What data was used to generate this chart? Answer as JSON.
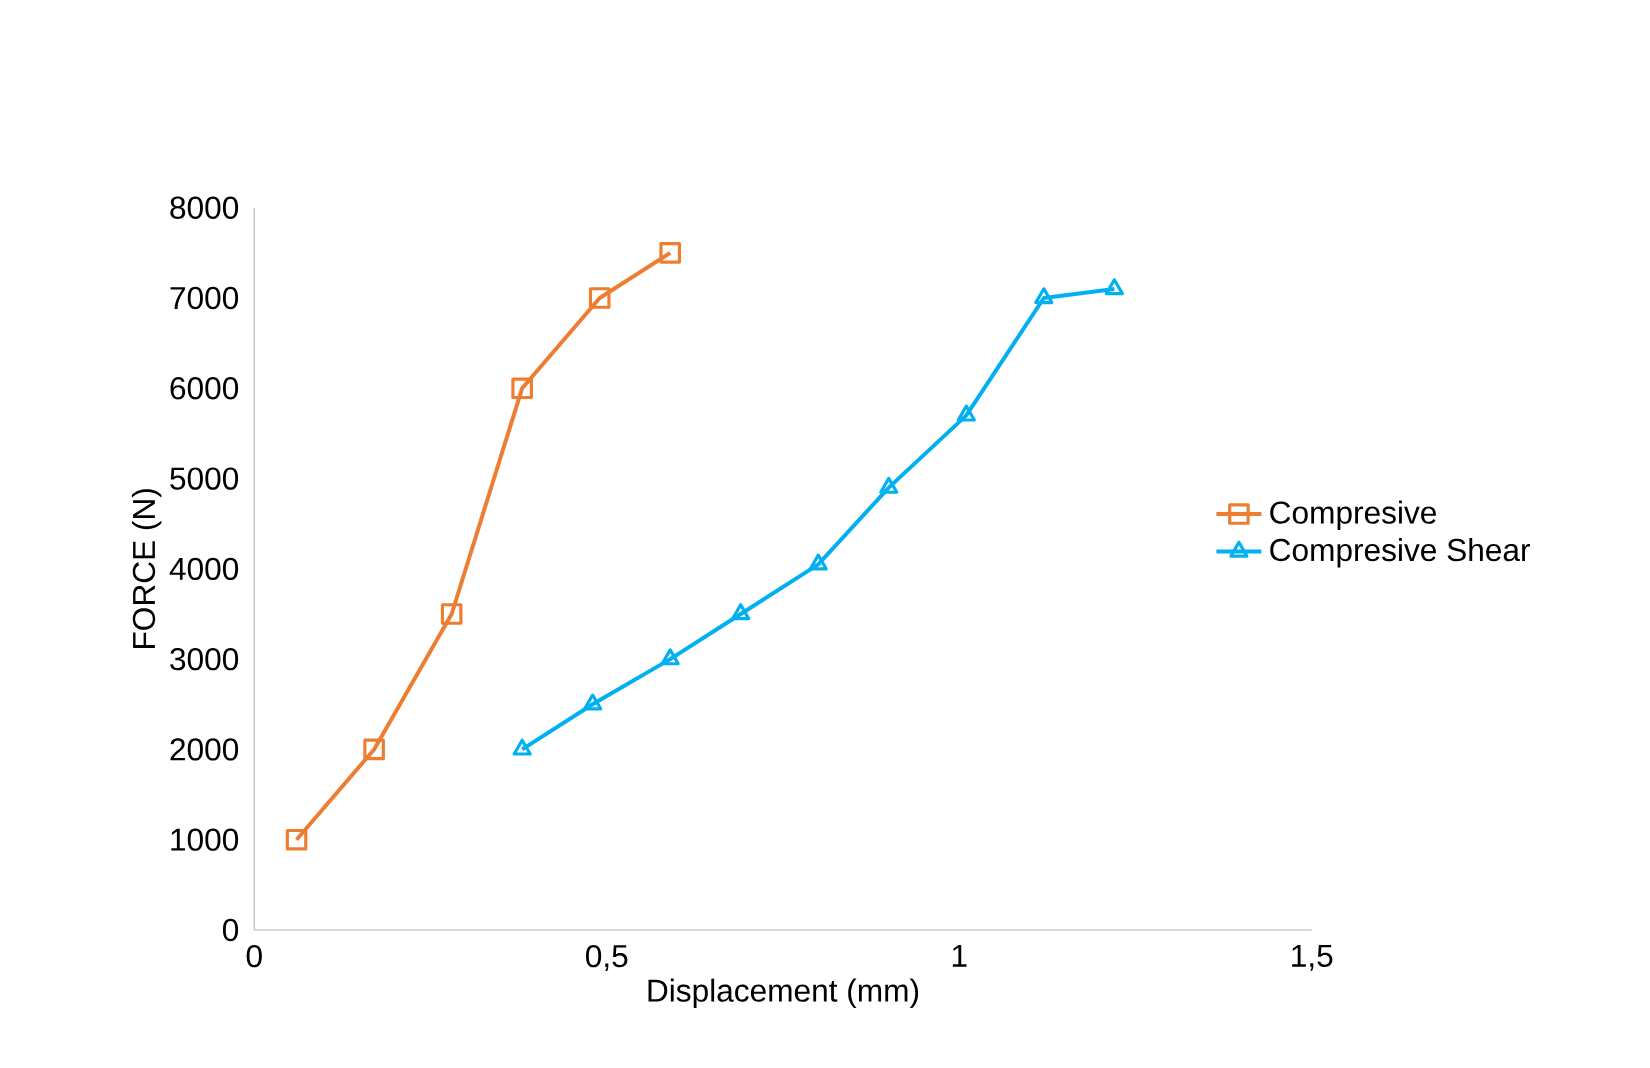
{
  "chart_data": {
    "type": "line",
    "xlabel": "Displacement (mm)",
    "ylabel": "FORCE (N)",
    "xlim": [
      0,
      1.5
    ],
    "xticks": [
      0,
      {
        "value": 0.5,
        "label": "0,5"
      },
      1,
      {
        "value": 1.5,
        "label": "1,5"
      }
    ],
    "ylim": [
      0,
      8000
    ],
    "yticks": [
      0,
      1000,
      2000,
      3000,
      4000,
      5000,
      6000,
      7000,
      8000
    ],
    "grid": false,
    "legend": "right",
    "series": [
      {
        "name": "Compresive",
        "color": "#ed7d31",
        "marker": "square",
        "x": [
          0.06,
          0.17,
          0.28,
          0.38,
          0.49,
          0.59
        ],
        "values": [
          1000,
          2000,
          3500,
          6000,
          7000,
          7500
        ]
      },
      {
        "name": "Compresive Shear",
        "color": "#00b0f0",
        "marker": "triangle",
        "x": [
          0.38,
          0.48,
          0.59,
          0.69,
          0.8,
          0.9,
          1.01,
          1.12,
          1.22
        ],
        "values": [
          2000,
          2500,
          3000,
          3500,
          4050,
          4900,
          5700,
          7000,
          7100
        ]
      }
    ]
  }
}
